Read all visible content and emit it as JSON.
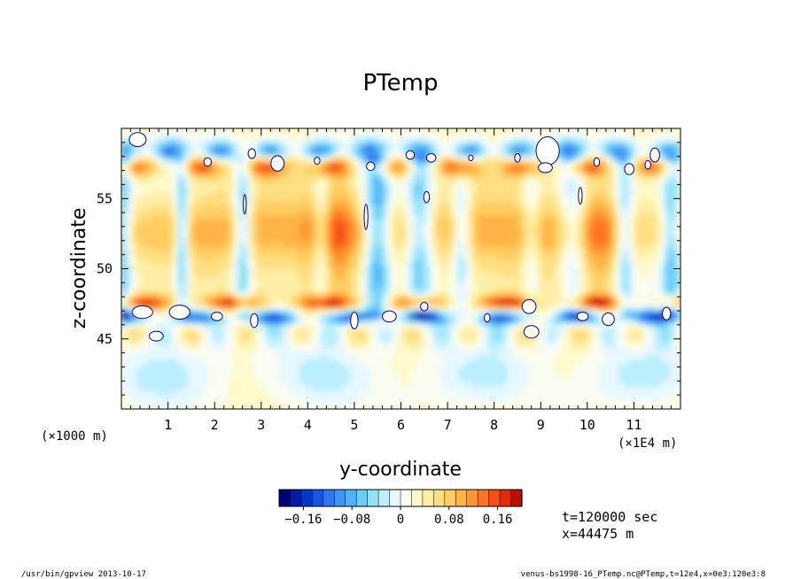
{
  "chart_data": {
    "type": "heatmap",
    "title": "PTemp",
    "xlabel": "y-coordinate",
    "ylabel": "z-coordinate",
    "x_unit_left": "(×1000 m)",
    "x_unit_right": "(×1E4 m)",
    "xlim": [
      0,
      120000
    ],
    "ylim": [
      40000,
      60000
    ],
    "x_ticks": [
      {
        "value": 10000,
        "label": "1"
      },
      {
        "value": 20000,
        "label": "2"
      },
      {
        "value": 30000,
        "label": "3"
      },
      {
        "value": 40000,
        "label": "4"
      },
      {
        "value": 50000,
        "label": "5"
      },
      {
        "value": 60000,
        "label": "6"
      },
      {
        "value": 70000,
        "label": "7"
      },
      {
        "value": 80000,
        "label": "8"
      },
      {
        "value": 90000,
        "label": "9"
      },
      {
        "value": 100000,
        "label": "10"
      },
      {
        "value": 110000,
        "label": "11"
      }
    ],
    "y_ticks": [
      {
        "value": 45000,
        "label": "45"
      },
      {
        "value": 50000,
        "label": "50"
      },
      {
        "value": 55000,
        "label": "55"
      }
    ],
    "grid": false,
    "colorbar": {
      "range": [
        -0.2,
        0.2
      ],
      "ticks": [
        {
          "value": -0.16,
          "label": "−0.16"
        },
        {
          "value": -0.08,
          "label": "−0.08"
        },
        {
          "value": 0,
          "label": "0"
        },
        {
          "value": 0.08,
          "label": "0.08"
        },
        {
          "value": 0.16,
          "label": "0.16"
        }
      ],
      "colors": [
        "#00007a",
        "#001ca6",
        "#0038cc",
        "#1656e6",
        "#2d77f0",
        "#3f95f5",
        "#4fb2f8",
        "#6ccdf7",
        "#94e2f8",
        "#bcefff",
        "#e6f8ff",
        "#fbfdf2",
        "#fff9cc",
        "#ffeea6",
        "#ffdf82",
        "#ffcd62",
        "#ffb446",
        "#ff9632",
        "#ff7422",
        "#f55014",
        "#e02a0a",
        "#b81000"
      ]
    },
    "below_range_color": "#ffffff",
    "above_range_color": "#ffffff"
  },
  "info": {
    "time": "t=120000 sec",
    "position": "x=44475 m"
  },
  "footer": {
    "left": "/usr/bin/gpview   2013-10-17",
    "right": "venus-bs1998-16_PTemp.nc@PTemp,t=12e4,x=0e3:120e3:8"
  }
}
